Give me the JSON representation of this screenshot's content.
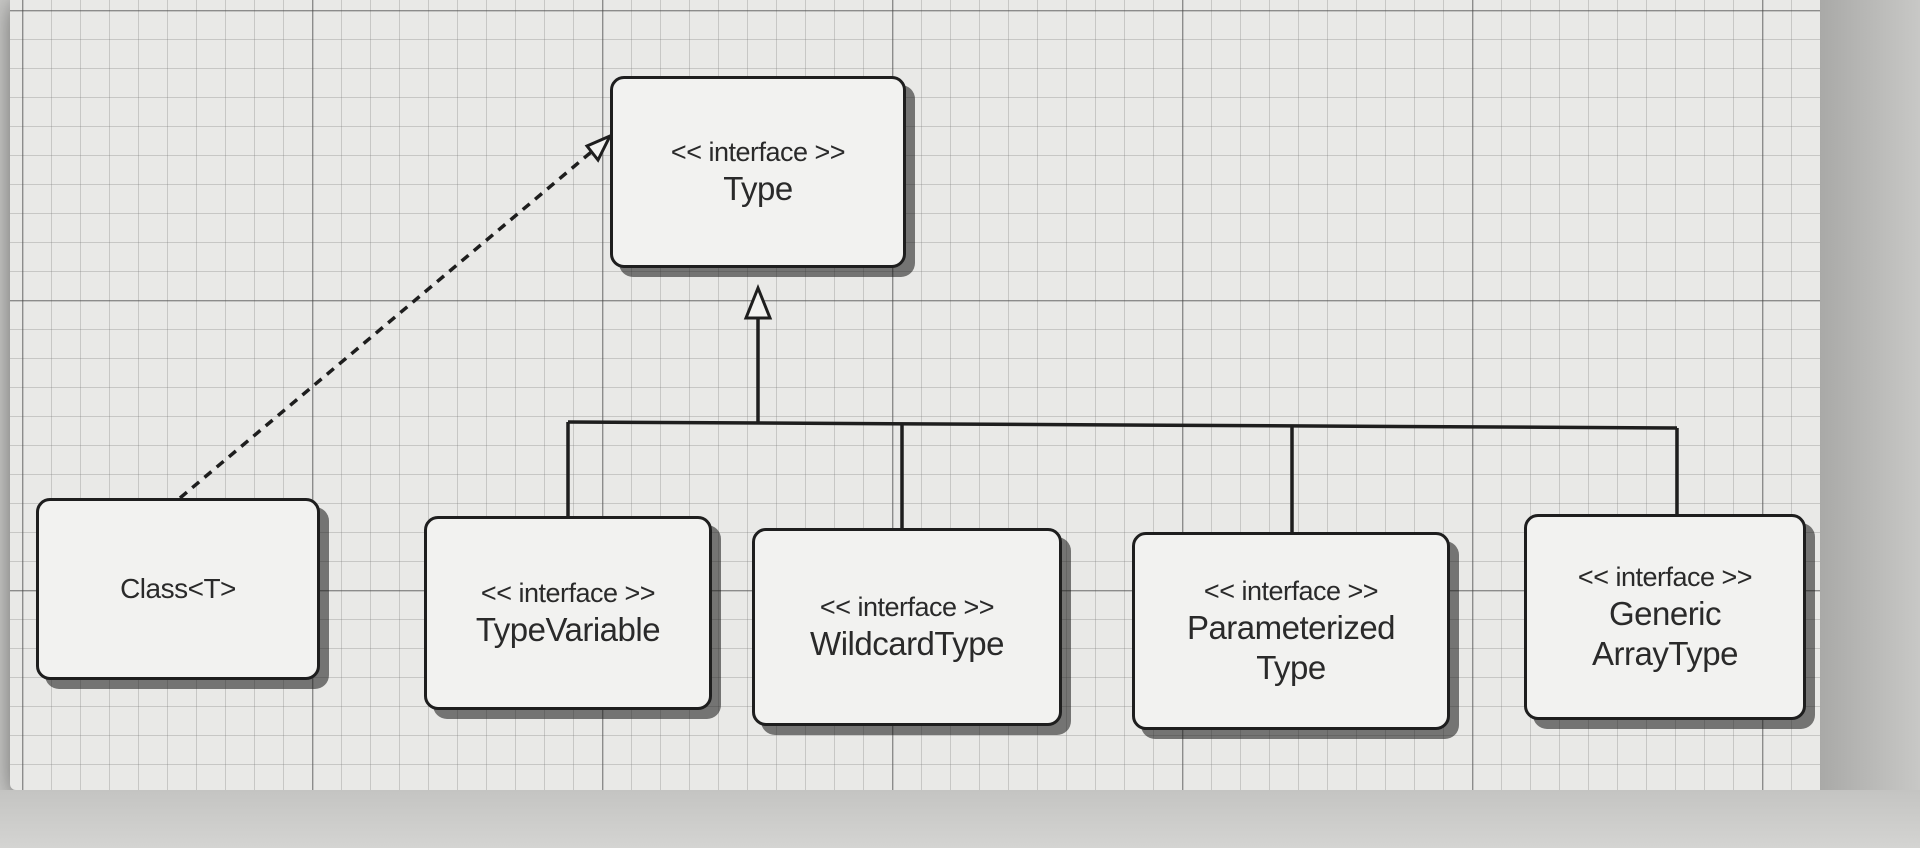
{
  "diagram": {
    "nodes": {
      "type": {
        "stereotype": "<< interface >>",
        "name": "Type"
      },
      "class_t": {
        "name": "Class<T>"
      },
      "type_variable": {
        "stereotype": "<< interface >>",
        "name": "TypeVariable"
      },
      "wildcard_type": {
        "stereotype": "<< interface >>",
        "name": "WildcardType"
      },
      "parameterized_type": {
        "stereotype": "<< interface >>",
        "name_line1": "Parameterized",
        "name_line2": "Type"
      },
      "generic_array_type": {
        "stereotype": "<< interface >>",
        "name_line1": "Generic",
        "name_line2": "ArrayType"
      }
    },
    "edges": [
      {
        "from": "class_t",
        "to": "type",
        "kind": "realization"
      },
      {
        "from": "type_variable",
        "to": "type",
        "kind": "generalization"
      },
      {
        "from": "wildcard_type",
        "to": "type",
        "kind": "generalization"
      },
      {
        "from": "parameterized_type",
        "to": "type",
        "kind": "generalization"
      },
      {
        "from": "generic_array_type",
        "to": "type",
        "kind": "generalization"
      }
    ]
  }
}
